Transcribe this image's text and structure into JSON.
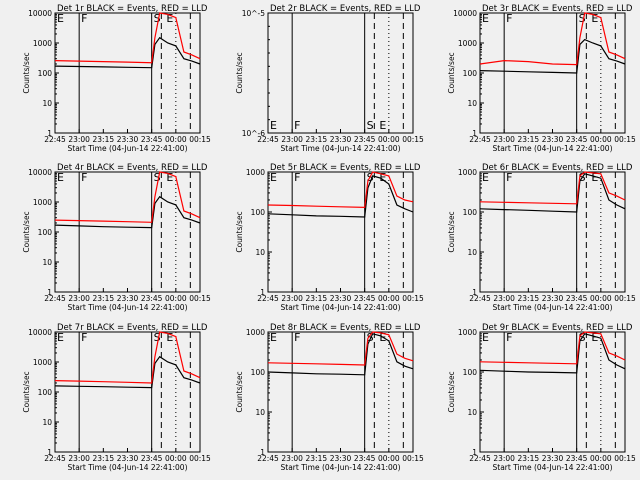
{
  "figure": {
    "xlabel": "Start Time (04-Jun-14 22:41:00)",
    "ylabel": "Counts/sec",
    "xtick_labels": [
      "22:45",
      "23:00",
      "23:15",
      "23:30",
      "23:45",
      "00:00",
      "00:15"
    ],
    "ytick_labels_log": [
      "1",
      "10",
      "100",
      "1000",
      "10000"
    ],
    "marker_labels": [
      "E",
      "F",
      "S",
      "E"
    ],
    "colors": {
      "events": "#000000",
      "lld": "#ff0000",
      "background": "#f0f0f0"
    }
  },
  "chart_data": [
    {
      "type": "line",
      "title": "Det 1r BLACK = Events, RED = LLD",
      "yscale": "log",
      "ylim": [
        1,
        10000
      ],
      "x": [
        "22:45",
        "23:00",
        "23:15",
        "23:30",
        "23:45",
        "23:47",
        "23:50",
        "23:55",
        "00:00",
        "00:05",
        "00:10",
        "00:15"
      ],
      "series": [
        {
          "name": "Events",
          "color": "#000000",
          "values": [
            170,
            165,
            160,
            155,
            150,
            900,
            1500,
            1000,
            800,
            300,
            250,
            200
          ]
        },
        {
          "name": "LLD",
          "color": "#ff0000",
          "values": [
            260,
            250,
            240,
            230,
            220,
            1500,
            10000,
            9000,
            7000,
            500,
            400,
            300
          ]
        }
      ]
    },
    {
      "type": "line",
      "title": "Det 2r BLACK = Events, RED = LLD",
      "yscale": "log",
      "ylim": [
        1e-06,
        1e-05
      ],
      "yticks": [
        "10^-6",
        "10^-5"
      ],
      "x": [],
      "series": []
    },
    {
      "type": "line",
      "title": "Det 3r BLACK = Events, RED = LLD",
      "yscale": "log",
      "ylim": [
        1,
        10000
      ],
      "x": [
        "22:45",
        "23:00",
        "23:15",
        "23:30",
        "23:45",
        "23:47",
        "23:50",
        "23:55",
        "00:00",
        "00:05",
        "00:10",
        "00:15"
      ],
      "series": [
        {
          "name": "Events",
          "color": "#000000",
          "values": [
            120,
            115,
            110,
            105,
            100,
            900,
            1300,
            1000,
            800,
            300,
            250,
            200
          ]
        },
        {
          "name": "LLD",
          "color": "#ff0000",
          "values": [
            200,
            260,
            240,
            200,
            190,
            1500,
            10000,
            9000,
            7000,
            500,
            400,
            300
          ]
        }
      ]
    },
    {
      "type": "line",
      "title": "Det 4r BLACK = Events, RED = LLD",
      "yscale": "log",
      "ylim": [
        1,
        10000
      ],
      "x": [
        "22:45",
        "23:00",
        "23:15",
        "23:30",
        "23:45",
        "23:47",
        "23:50",
        "23:55",
        "00:00",
        "00:05",
        "00:10",
        "00:15"
      ],
      "series": [
        {
          "name": "Events",
          "color": "#000000",
          "values": [
            170,
            160,
            150,
            145,
            140,
            900,
            1500,
            1000,
            800,
            300,
            250,
            200
          ]
        },
        {
          "name": "LLD",
          "color": "#ff0000",
          "values": [
            250,
            240,
            230,
            220,
            210,
            1500,
            10000,
            9000,
            7000,
            500,
            400,
            300
          ]
        }
      ]
    },
    {
      "type": "line",
      "title": "Det 5r BLACK = Events, RED = LLD",
      "yscale": "log",
      "ylim": [
        1,
        1000
      ],
      "x": [
        "22:45",
        "23:00",
        "23:15",
        "23:30",
        "23:45",
        "23:47",
        "23:50",
        "23:55",
        "00:00",
        "00:05",
        "00:10",
        "00:15"
      ],
      "series": [
        {
          "name": "Events",
          "color": "#000000",
          "values": [
            90,
            85,
            80,
            78,
            75,
            400,
            800,
            700,
            500,
            150,
            120,
            100
          ]
        },
        {
          "name": "LLD",
          "color": "#ff0000",
          "values": [
            150,
            145,
            140,
            135,
            130,
            600,
            1000,
            900,
            800,
            250,
            200,
            180
          ]
        }
      ]
    },
    {
      "type": "line",
      "title": "Det 6r BLACK = Events, RED = LLD",
      "yscale": "log",
      "ylim": [
        1,
        1000
      ],
      "x": [
        "22:45",
        "23:00",
        "23:15",
        "23:30",
        "23:45",
        "23:47",
        "23:50",
        "23:55",
        "00:00",
        "00:05",
        "00:10",
        "00:15"
      ],
      "series": [
        {
          "name": "Events",
          "color": "#000000",
          "values": [
            120,
            115,
            110,
            105,
            100,
            600,
            900,
            800,
            700,
            200,
            150,
            120
          ]
        },
        {
          "name": "LLD",
          "color": "#ff0000",
          "values": [
            180,
            175,
            170,
            165,
            160,
            800,
            1000,
            950,
            900,
            300,
            250,
            200
          ]
        }
      ]
    },
    {
      "type": "line",
      "title": "Det 7r BLACK = Events, RED = LLD",
      "yscale": "log",
      "ylim": [
        1,
        10000
      ],
      "x": [
        "22:45",
        "23:00",
        "23:15",
        "23:30",
        "23:45",
        "23:47",
        "23:50",
        "23:55",
        "00:00",
        "00:05",
        "00:10",
        "00:15"
      ],
      "series": [
        {
          "name": "Events",
          "color": "#000000",
          "values": [
            160,
            155,
            150,
            145,
            140,
            900,
            1500,
            1000,
            800,
            300,
            250,
            200
          ]
        },
        {
          "name": "LLD",
          "color": "#ff0000",
          "values": [
            240,
            230,
            220,
            210,
            200,
            1500,
            10000,
            9000,
            7000,
            500,
            400,
            300
          ]
        }
      ]
    },
    {
      "type": "line",
      "title": "Det 8r BLACK = Events, RED = LLD",
      "yscale": "log",
      "ylim": [
        1,
        1000
      ],
      "x": [
        "22:45",
        "23:00",
        "23:15",
        "23:30",
        "23:45",
        "23:47",
        "23:50",
        "23:55",
        "00:00",
        "00:05",
        "00:10",
        "00:15"
      ],
      "series": [
        {
          "name": "Events",
          "color": "#000000",
          "values": [
            100,
            95,
            90,
            88,
            85,
            500,
            900,
            800,
            600,
            180,
            140,
            120
          ]
        },
        {
          "name": "LLD",
          "color": "#ff0000",
          "values": [
            170,
            165,
            160,
            155,
            150,
            700,
            1000,
            950,
            850,
            280,
            220,
            190
          ]
        }
      ]
    },
    {
      "type": "line",
      "title": "Det 9r BLACK = Events, RED = LLD",
      "yscale": "log",
      "ylim": [
        1,
        1000
      ],
      "x": [
        "22:45",
        "23:00",
        "23:15",
        "23:30",
        "23:45",
        "23:47",
        "23:50",
        "23:55",
        "00:00",
        "00:05",
        "00:10",
        "00:15"
      ],
      "series": [
        {
          "name": "Events",
          "color": "#000000",
          "values": [
            110,
            105,
            100,
            98,
            95,
            600,
            900,
            800,
            700,
            200,
            150,
            120
          ]
        },
        {
          "name": "LLD",
          "color": "#ff0000",
          "values": [
            180,
            175,
            170,
            165,
            160,
            800,
            1000,
            950,
            900,
            300,
            250,
            200
          ]
        }
      ]
    }
  ]
}
